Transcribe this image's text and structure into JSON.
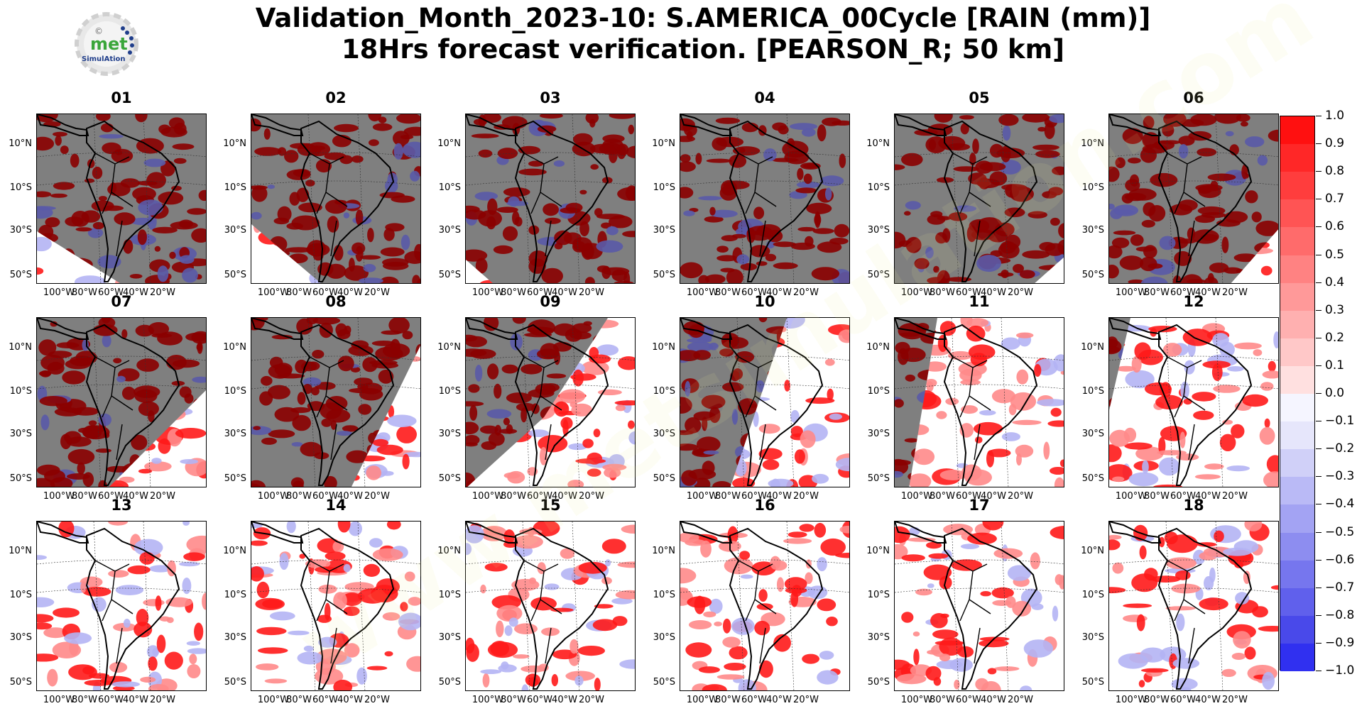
{
  "title": {
    "line1": "Validation_Month_2023-10: S.AMERICA_00Cycle [RAIN (mm)]",
    "line2": "18Hrs forecast verification.  [PEARSON_R; 50 km]"
  },
  "logo": {
    "text_main": "met",
    "text_sub": "SimulAtion",
    "mark": "©"
  },
  "watermark": "www.metsimulation.com",
  "panels": [
    {
      "label": "01",
      "terminator": "left-cut"
    },
    {
      "label": "02",
      "terminator": "left-low"
    },
    {
      "label": "03",
      "terminator": "left-corner"
    },
    {
      "label": "04",
      "terminator": "none"
    },
    {
      "label": "05",
      "terminator": "right-corner"
    },
    {
      "label": "06",
      "terminator": "right-low"
    },
    {
      "label": "07",
      "terminator": "right-mid"
    },
    {
      "label": "08",
      "terminator": "right-high"
    },
    {
      "label": "09",
      "terminator": "right-top"
    },
    {
      "label": "10",
      "terminator": "center"
    },
    {
      "label": "11",
      "terminator": "left-strip"
    },
    {
      "label": "12",
      "terminator": "left-thin"
    },
    {
      "label": "13",
      "terminator": "day"
    },
    {
      "label": "14",
      "terminator": "day"
    },
    {
      "label": "15",
      "terminator": "day"
    },
    {
      "label": "16",
      "terminator": "day"
    },
    {
      "label": "17",
      "terminator": "day"
    },
    {
      "label": "18",
      "terminator": "day"
    }
  ],
  "lat_labels": [
    "10°N",
    "10°S",
    "30°S",
    "50°S"
  ],
  "lon_labels": [
    "100°W",
    "80°W",
    "60°W",
    "40°W",
    "20°W"
  ],
  "colorbar": {
    "ticks": [
      "1.0",
      "0.9",
      "0.8",
      "0.7",
      "0.6",
      "0.5",
      "0.4",
      "0.3",
      "0.2",
      "0.1",
      "0.0",
      "−0.1",
      "−0.2",
      "−0.3",
      "−0.4",
      "−0.5",
      "−0.6",
      "−0.7",
      "−0.8",
      "−0.9",
      "−1.0"
    ],
    "colors": [
      "#ff1010",
      "#ff2727",
      "#ff3d3d",
      "#ff5454",
      "#ff6b6b",
      "#ff8282",
      "#ff9999",
      "#ffb0b0",
      "#ffc8c8",
      "#ffe0e0",
      "#f5f5ff",
      "#e6e6fb",
      "#d0d0f8",
      "#babaf6",
      "#a3a3f3",
      "#8d8df0",
      "#7676ee",
      "#6060ec",
      "#4949ea",
      "#3030f0",
      "#1010ff"
    ]
  },
  "colors": {
    "night": "#7f7f7f",
    "dark_red": "#8b0000",
    "bright_red": "#ff1a1a"
  }
}
